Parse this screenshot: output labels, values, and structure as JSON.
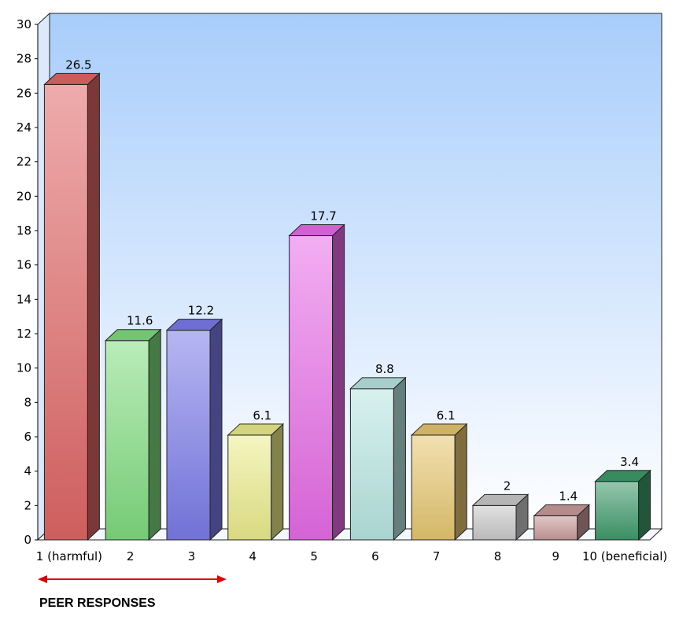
{
  "chart_data": {
    "type": "bar",
    "title": "",
    "xlabel": "",
    "ylabel": "",
    "ylim": [
      0,
      30
    ],
    "yticks": [
      0,
      2,
      4,
      6,
      8,
      10,
      12,
      14,
      16,
      18,
      20,
      22,
      24,
      26,
      28,
      30
    ],
    "categories": [
      "1 (harmful)",
      "2",
      "3",
      "4",
      "5",
      "6",
      "7",
      "8",
      "9",
      "10 (beneficial)"
    ],
    "values": [
      26.5,
      11.6,
      12.2,
      6.1,
      17.7,
      8.8,
      6.1,
      2,
      1.4,
      3.4
    ],
    "data_labels": [
      "26.5",
      "11.6",
      "12.2",
      "6.1",
      "17.7",
      "8.8",
      "6.1",
      "2",
      "1.4",
      "3.4"
    ],
    "colors": [
      "#e06666",
      "#7fdc7f",
      "#7b7bea",
      "#ecec8c",
      "#e86ce8",
      "#b8e6e2",
      "#e6c770",
      "#c9c9c9",
      "#c99a9a",
      "#3e9a6a"
    ],
    "grid": false,
    "legend": "none",
    "style": "3d-columns"
  },
  "annotation": {
    "text": "PEER RESPONSES",
    "arrow_color": "#e00000",
    "arrow_span_categories": [
      "1 (harmful)",
      "3"
    ]
  },
  "theme": {
    "plot_gradient_top": "#a8cdfb",
    "plot_gradient_bottom": "#ffffff"
  }
}
